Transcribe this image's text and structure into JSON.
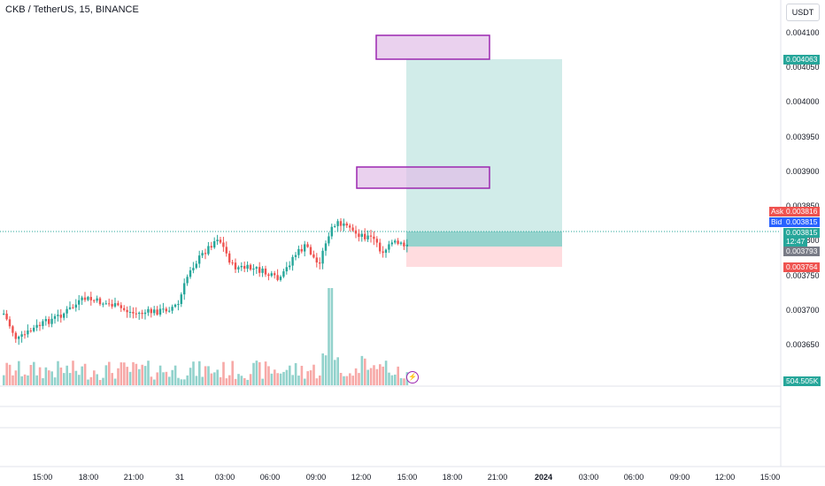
{
  "header": {
    "symbol_title": "CKB / TetherUS, 15, BINANCE",
    "currency_button": "USDT"
  },
  "colors": {
    "up": "#26a69a",
    "down": "#ef5350",
    "target_zone": "#b2dfdb",
    "stop_zone": "#ffcdd2",
    "zone_box": "#9c27b0",
    "ask": "#ef5350",
    "bid": "#2962ff"
  },
  "price_axis": {
    "labels": [
      "0.004100",
      "0.004050",
      "0.004000",
      "0.003950",
      "0.003900",
      "0.003850",
      "0.003800",
      "0.003750",
      "0.003700",
      "0.003650"
    ]
  },
  "time_axis": {
    "labels": [
      "15:00",
      "18:00",
      "21:00",
      "31",
      "03:00",
      "06:00",
      "09:00",
      "12:00",
      "15:00",
      "18:00",
      "21:00",
      "2024",
      "03:00",
      "06:00",
      "09:00",
      "12:00",
      "15:00"
    ]
  },
  "price_tags": {
    "target": "0.004063",
    "ask_label": "Ask",
    "ask": "0.003816",
    "bid_label": "Bid",
    "bid": "0.003815",
    "last": "0.003815",
    "countdown": "12:47",
    "entry": "0.003793",
    "stop": "0.003764",
    "volume": "504.505K"
  },
  "chart_data": {
    "type": "candlestick",
    "price_range": [
      0.003615,
      0.004125
    ],
    "target_price": 0.004063,
    "entry_price": 0.003793,
    "stop_price": 0.003764,
    "current_price": 0.003815,
    "supply_zones": [
      {
        "low": 0.00406,
        "high": 0.004095
      },
      {
        "low": 0.003875,
        "high": 0.003906
      }
    ]
  }
}
